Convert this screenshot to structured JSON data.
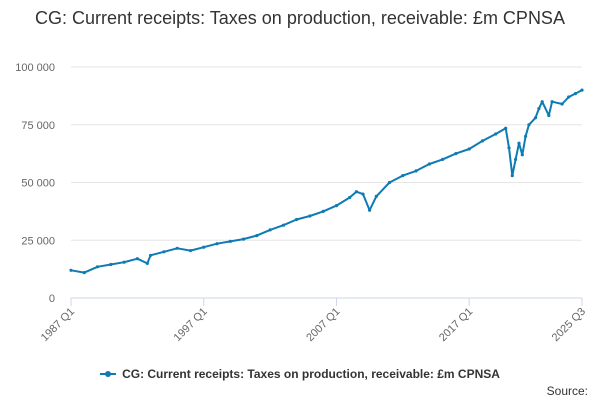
{
  "colors": {
    "series": "#0e7bb3"
  },
  "chart_data": {
    "type": "line",
    "title": "CG: Current receipts: Taxes on production, receivable: £m CPNSA",
    "xlabel": "",
    "ylabel": "",
    "ylim": [
      0,
      100000
    ],
    "y_ticks": [
      0,
      25000,
      50000,
      75000,
      100000
    ],
    "y_tick_labels": [
      "0",
      "25 000",
      "50 000",
      "75 000",
      "100 000"
    ],
    "x_ticks": [
      "1987 Q1",
      "1997 Q1",
      "2007 Q1",
      "2017 Q1",
      "2025 Q3"
    ],
    "grid": true,
    "legend_position": "bottom",
    "series": [
      {
        "name": "CG: Current receipts: Taxes on production, receivable: £m CPNSA",
        "x": [
          "1987 Q1",
          "1988 Q1",
          "1989 Q1",
          "1990 Q1",
          "1991 Q1",
          "1992 Q1",
          "1992 Q4",
          "1993 Q1",
          "1994 Q1",
          "1995 Q1",
          "1996 Q1",
          "1997 Q1",
          "1998 Q1",
          "1999 Q1",
          "2000 Q1",
          "2001 Q1",
          "2002 Q1",
          "2003 Q1",
          "2004 Q1",
          "2005 Q1",
          "2006 Q1",
          "2007 Q1",
          "2008 Q1",
          "2008 Q3",
          "2009 Q1",
          "2009 Q3",
          "2010 Q1",
          "2011 Q1",
          "2012 Q1",
          "2013 Q1",
          "2014 Q1",
          "2015 Q1",
          "2016 Q1",
          "2017 Q1",
          "2018 Q1",
          "2019 Q1",
          "2019 Q4",
          "2020 Q1",
          "2020 Q2",
          "2020 Q3",
          "2020 Q4",
          "2021 Q1",
          "2021 Q2",
          "2021 Q3",
          "2022 Q1",
          "2022 Q2",
          "2022 Q3",
          "2023 Q1",
          "2023 Q2",
          "2024 Q1",
          "2024 Q3",
          "2025 Q1",
          "2025 Q3"
        ],
        "y": [
          12000,
          11000,
          13500,
          14500,
          15500,
          17000,
          15000,
          18500,
          20000,
          21500,
          20500,
          22000,
          23500,
          24500,
          25500,
          27000,
          29500,
          31500,
          34000,
          35500,
          37500,
          40000,
          43500,
          46000,
          45000,
          38000,
          44000,
          50000,
          53000,
          55000,
          58000,
          60000,
          62500,
          64500,
          68000,
          71000,
          73500,
          65000,
          53000,
          60000,
          67000,
          62000,
          70000,
          75000,
          78000,
          82000,
          85000,
          79000,
          85000,
          84000,
          87000,
          88500,
          90000
        ]
      }
    ]
  },
  "credits": "Source:"
}
